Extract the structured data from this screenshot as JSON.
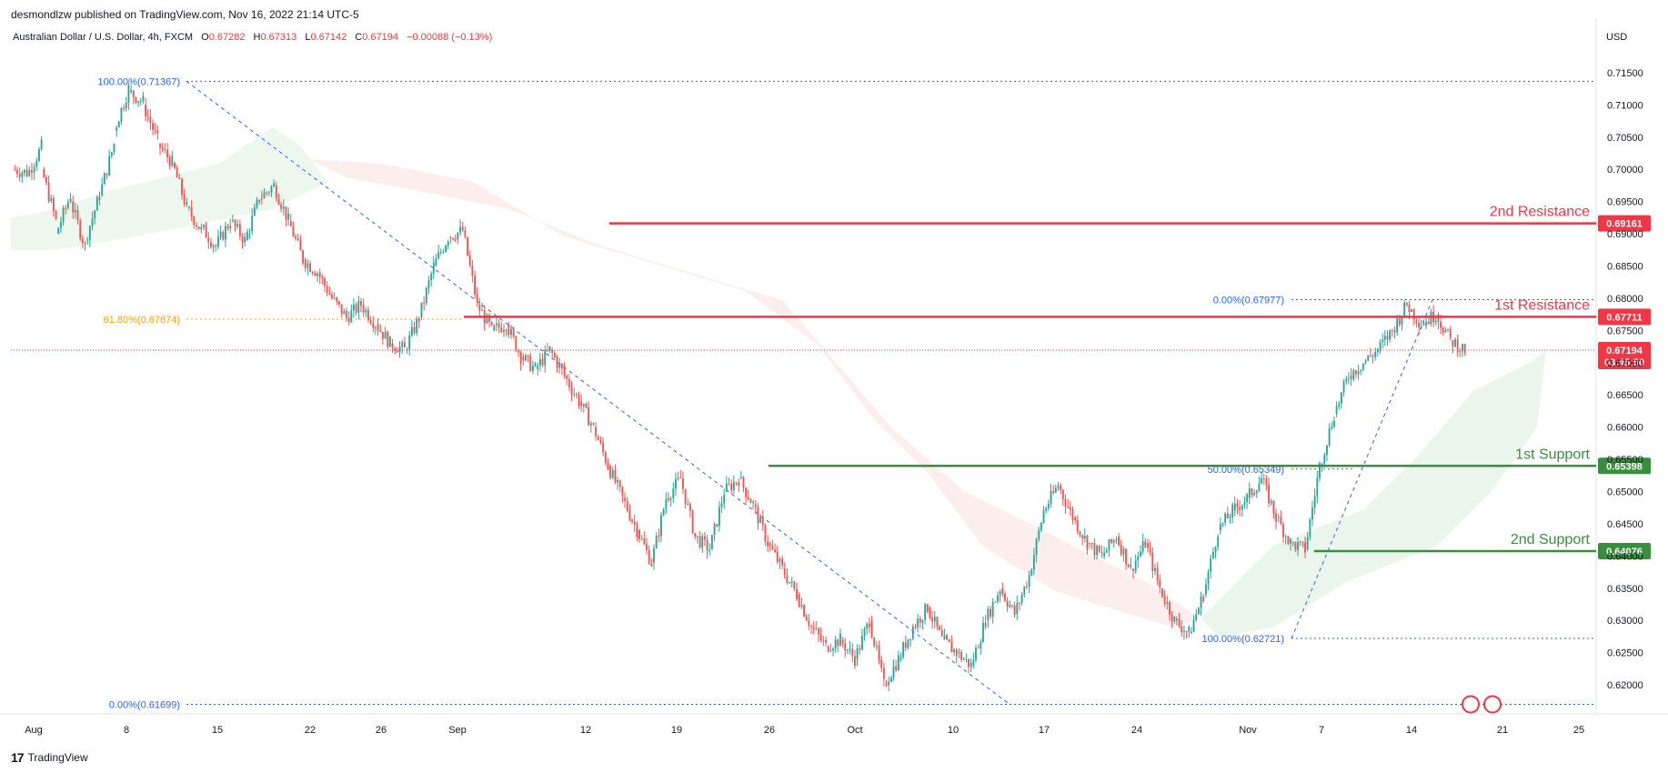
{
  "header": {
    "publisher": "desmondlzw published on TradingView.com, Nov 16, 2022 21:14 UTC-5",
    "instrument": "Australian Dollar / U.S. Dollar, 4h, FXCM",
    "o_label": "O",
    "o_value": "0.67282",
    "h_label": "H",
    "h_value": "0.67313",
    "l_label": "L",
    "l_value": "0.67142",
    "c_label": "C",
    "c_value": "0.67194",
    "change": "−0.00088 (−0.13%)"
  },
  "currency": "USD",
  "footer": {
    "logo_glyph": "17",
    "brand": "TradingView"
  },
  "chart_data": {
    "type": "candlestick",
    "x_ticks": [
      "Aug",
      "8",
      "15",
      "22",
      "26",
      "Sep",
      "12",
      "19",
      "26",
      "Oct",
      "10",
      "17",
      "24",
      "Nov",
      "7",
      "14",
      "21",
      "25"
    ],
    "y_ticks": [
      "0.71500",
      "0.71000",
      "0.70500",
      "0.70000",
      "0.69500",
      "0.69000",
      "0.68500",
      "0.68000",
      "0.67500",
      "0.67000",
      "0.66500",
      "0.66000",
      "0.65500",
      "0.65000",
      "0.64500",
      "0.64000",
      "0.63500",
      "0.63000",
      "0.62500",
      "0.62000"
    ],
    "ylim": [
      0.6155,
      0.7195
    ],
    "last_price": "0.67194",
    "countdown": "03:45:50",
    "levels": [
      {
        "name": "2nd Resistance",
        "value": 0.69161,
        "label": "0.69161",
        "color": "#f23645"
      },
      {
        "name": "1st Resistance",
        "value": 0.67711,
        "label": "0.67711",
        "color": "#f23645"
      },
      {
        "name": "1st Support",
        "value": 0.65398,
        "label": "0.65398",
        "color": "#388e3c"
      },
      {
        "name": "2nd Support",
        "value": 0.64076,
        "label": "0.64076",
        "color": "#388e3c"
      }
    ],
    "fib_labels": [
      {
        "text": "100.00%(0.71367)",
        "value": 0.71367,
        "color": "#2962ff"
      },
      {
        "text": "61.80%(0.67674)",
        "value": 0.67674,
        "color": "#f7a600"
      },
      {
        "text": "0.00%(0.61699)",
        "value": 0.61699,
        "color": "#2962ff"
      },
      {
        "text": "0.00%(0.67977)",
        "value": 0.67977,
        "color": "#2962ff"
      },
      {
        "text": "50.00%(0.65349)",
        "value": 0.65349,
        "color": "#2962ff"
      },
      {
        "text": "100.00%(0.62721)",
        "value": 0.62721,
        "color": "#2962ff"
      }
    ],
    "price_path": [
      [
        0.7,
        0.6995
      ],
      [
        0.699,
        0.7035
      ],
      [
        0.7,
        0.692
      ],
      [
        0.69,
        0.696
      ],
      [
        0.695,
        0.688
      ],
      [
        0.689,
        0.696
      ],
      [
        0.696,
        0.704
      ],
      [
        0.706,
        0.7125
      ],
      [
        0.712,
        0.7105
      ],
      [
        0.71,
        0.7045
      ],
      [
        0.704,
        0.701
      ],
      [
        0.701,
        0.694
      ],
      [
        0.694,
        0.6905
      ],
      [
        0.691,
        0.688
      ],
      [
        0.688,
        0.692
      ],
      [
        0.692,
        0.689
      ],
      [
        0.689,
        0.6955
      ],
      [
        0.6955,
        0.6975
      ],
      [
        0.6975,
        0.692
      ],
      [
        0.692,
        0.686
      ],
      [
        0.686,
        0.684
      ],
      [
        0.684,
        0.68
      ],
      [
        0.68,
        0.677
      ],
      [
        0.677,
        0.679
      ],
      [
        0.679,
        0.676
      ],
      [
        0.676,
        0.673
      ],
      [
        0.673,
        0.672
      ],
      [
        0.672,
        0.677
      ],
      [
        0.677,
        0.685
      ],
      [
        0.685,
        0.6895
      ],
      [
        0.6895,
        0.6905
      ],
      [
        0.6905,
        0.679
      ],
      [
        0.679,
        0.675
      ],
      [
        0.675,
        0.676
      ],
      [
        0.676,
        0.671
      ],
      [
        0.671,
        0.669
      ],
      [
        0.669,
        0.672
      ],
      [
        0.672,
        0.668
      ],
      [
        0.668,
        0.664
      ],
      [
        0.664,
        0.66
      ],
      [
        0.66,
        0.654
      ],
      [
        0.654,
        0.649
      ],
      [
        0.649,
        0.644
      ],
      [
        0.644,
        0.639
      ],
      [
        0.639,
        0.649
      ],
      [
        0.649,
        0.652
      ],
      [
        0.652,
        0.643
      ],
      [
        0.643,
        0.641
      ],
      [
        0.641,
        0.65
      ],
      [
        0.65,
        0.652
      ],
      [
        0.652,
        0.648
      ],
      [
        0.648,
        0.642
      ],
      [
        0.642,
        0.638
      ],
      [
        0.638,
        0.634
      ],
      [
        0.634,
        0.629
      ],
      [
        0.629,
        0.626
      ],
      [
        0.626,
        0.627
      ],
      [
        0.627,
        0.624
      ],
      [
        0.624,
        0.63
      ],
      [
        0.63,
        0.62
      ],
      [
        0.62,
        0.624
      ],
      [
        0.624,
        0.629
      ],
      [
        0.629,
        0.632
      ],
      [
        0.632,
        0.627
      ],
      [
        0.627,
        0.625
      ],
      [
        0.625,
        0.623
      ],
      [
        0.623,
        0.63
      ],
      [
        0.63,
        0.635
      ],
      [
        0.635,
        0.631
      ],
      [
        0.631,
        0.637
      ],
      [
        0.637,
        0.647
      ],
      [
        0.647,
        0.651
      ],
      [
        0.651,
        0.646
      ],
      [
        0.646,
        0.642
      ],
      [
        0.642,
        0.64
      ],
      [
        0.64,
        0.643
      ],
      [
        0.643,
        0.638
      ],
      [
        0.638,
        0.642
      ],
      [
        0.642,
        0.635
      ],
      [
        0.635,
        0.63
      ],
      [
        0.63,
        0.628
      ],
      [
        0.628,
        0.634
      ],
      [
        0.634,
        0.644
      ],
      [
        0.644,
        0.647
      ],
      [
        0.647,
        0.649
      ],
      [
        0.649,
        0.652
      ],
      [
        0.652,
        0.646
      ],
      [
        0.646,
        0.642
      ],
      [
        0.642,
        0.641
      ],
      [
        0.641,
        0.654
      ],
      [
        0.654,
        0.662
      ],
      [
        0.662,
        0.668
      ],
      [
        0.668,
        0.67
      ],
      [
        0.67,
        0.672
      ],
      [
        0.672,
        0.675
      ],
      [
        0.675,
        0.679
      ],
      [
        0.679,
        0.676
      ],
      [
        0.676,
        0.6775
      ],
      [
        0.6775,
        0.6735
      ],
      [
        0.6735,
        0.6719
      ]
    ]
  }
}
